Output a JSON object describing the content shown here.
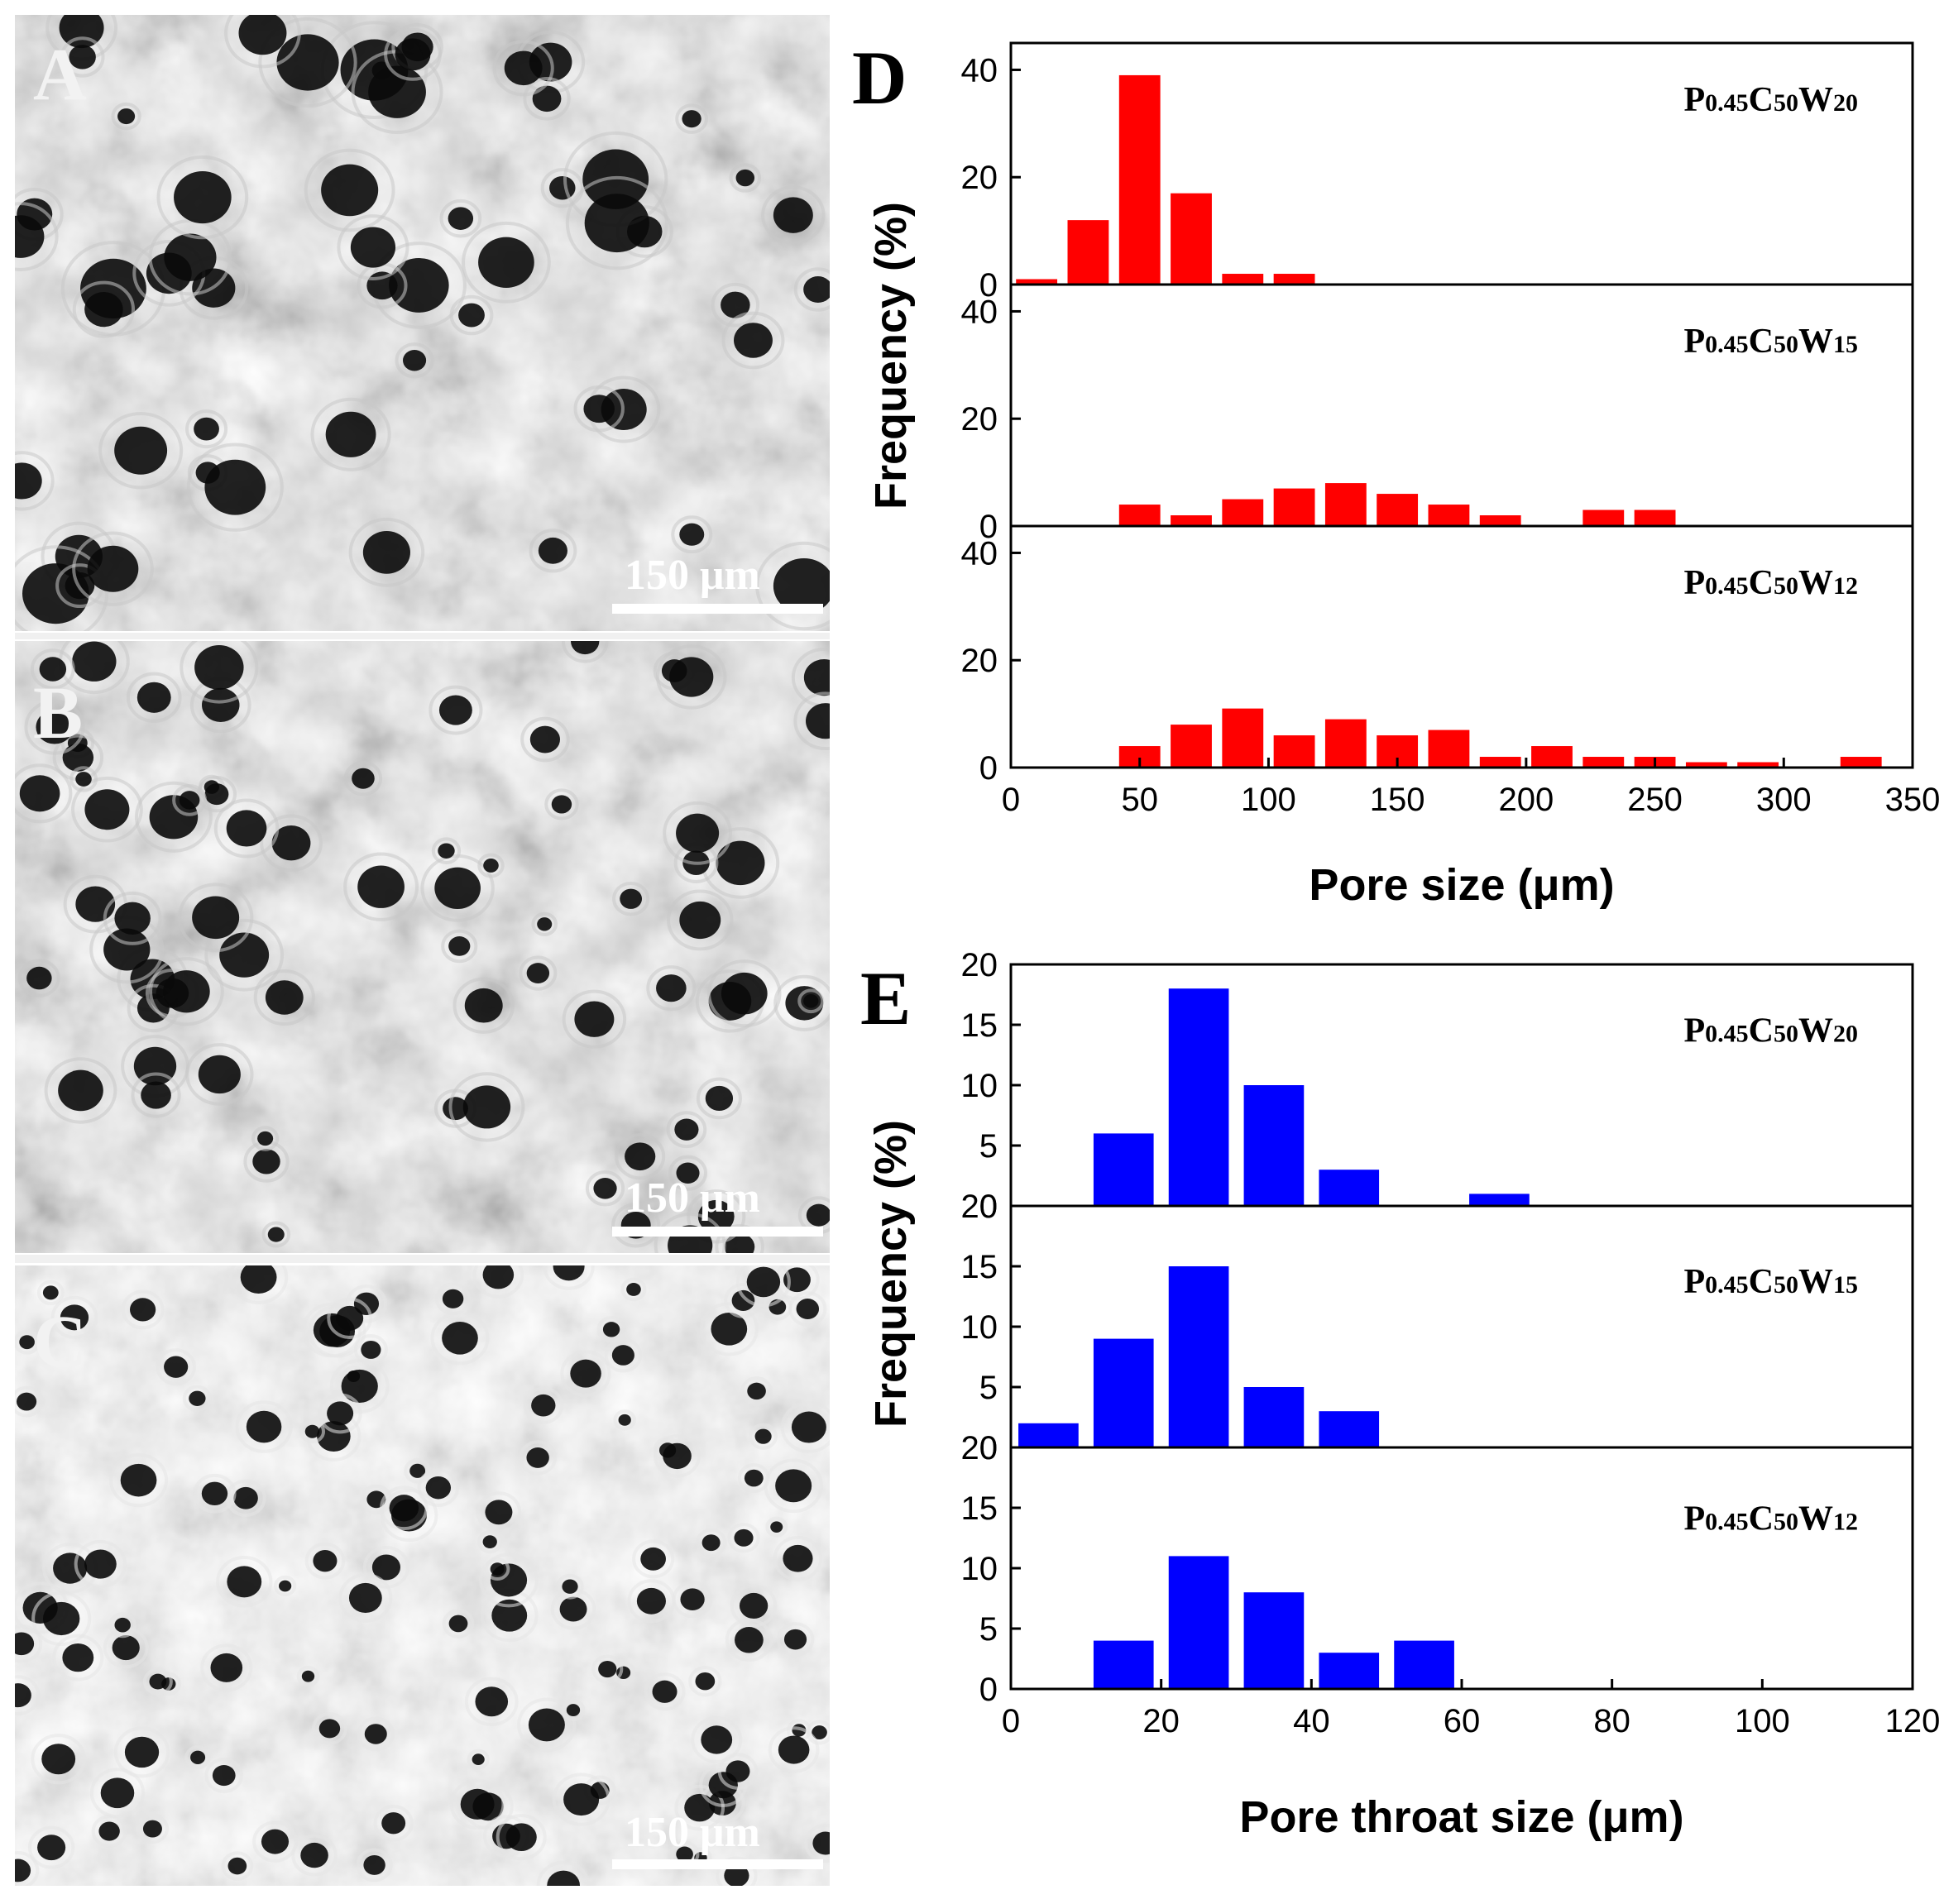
{
  "figure": {
    "background": "#ffffff",
    "sem_panels": [
      {
        "letter": "A",
        "scale_bar": "150 μm"
      },
      {
        "letter": "B",
        "scale_bar": "150 μm"
      },
      {
        "letter": "C",
        "scale_bar": "150 μm"
      }
    ]
  },
  "chart_data": [
    {
      "panel": "D",
      "type": "bar",
      "color": "#ff0000",
      "xlabel": "Pore size (μm)",
      "ylabel": "Frequency (%)",
      "xlim": [
        0,
        350
      ],
      "ylim": [
        0,
        45
      ],
      "xticks": [
        0,
        50,
        100,
        150,
        200,
        250,
        300,
        350
      ],
      "yticks": [
        0,
        20,
        40
      ],
      "bin_width": 16,
      "series": [
        {
          "name_main": "P",
          "name_sub1": "0.45",
          "name_mid": "C",
          "name_sub2": "50",
          "name_end": "W",
          "name_sub3": "20",
          "bins": [
            10,
            30,
            50,
            70,
            90,
            110
          ],
          "values": [
            1,
            12,
            39,
            17,
            2,
            2
          ]
        },
        {
          "name_main": "P",
          "name_sub1": "0.45",
          "name_mid": "C",
          "name_sub2": "50",
          "name_end": "W",
          "name_sub3": "15",
          "bins": [
            50,
            70,
            90,
            110,
            130,
            150,
            170,
            190,
            230,
            250
          ],
          "values": [
            4,
            2,
            5,
            7,
            8,
            6,
            4,
            2,
            3,
            3
          ]
        },
        {
          "name_main": "P",
          "name_sub1": "0.45",
          "name_mid": "C",
          "name_sub2": "50",
          "name_end": "W",
          "name_sub3": "12",
          "bins": [
            50,
            70,
            90,
            110,
            130,
            150,
            170,
            190,
            210,
            230,
            250,
            270,
            290,
            330
          ],
          "values": [
            4,
            8,
            11,
            6,
            9,
            6,
            7,
            2,
            4,
            2,
            2,
            1,
            1,
            2
          ]
        }
      ]
    },
    {
      "panel": "E",
      "type": "bar",
      "color": "#0000ff",
      "xlabel": "Pore throat size (μm)",
      "ylabel": "Frequency (%)",
      "xlim": [
        0,
        120
      ],
      "ylim": [
        0,
        20
      ],
      "xticks": [
        0,
        20,
        40,
        60,
        80,
        100,
        120
      ],
      "yticks": [
        0,
        5,
        10,
        15,
        20
      ],
      "bin_width": 8,
      "series": [
        {
          "name_main": "P",
          "name_sub1": "0.45",
          "name_mid": "C",
          "name_sub2": "50",
          "name_end": "W",
          "name_sub3": "20",
          "bins": [
            15,
            25,
            35,
            45,
            65
          ],
          "values": [
            6,
            18,
            10,
            3,
            1
          ]
        },
        {
          "name_main": "P",
          "name_sub1": "0.45",
          "name_mid": "C",
          "name_sub2": "50",
          "name_end": "W",
          "name_sub3": "15",
          "bins": [
            5,
            15,
            25,
            35,
            45
          ],
          "values": [
            2,
            9,
            15,
            5,
            3
          ]
        },
        {
          "name_main": "P",
          "name_sub1": "0.45",
          "name_mid": "C",
          "name_sub2": "50",
          "name_end": "W",
          "name_sub3": "12",
          "bins": [
            15,
            25,
            35,
            45,
            55
          ],
          "values": [
            4,
            11,
            8,
            3,
            4
          ]
        }
      ]
    }
  ]
}
